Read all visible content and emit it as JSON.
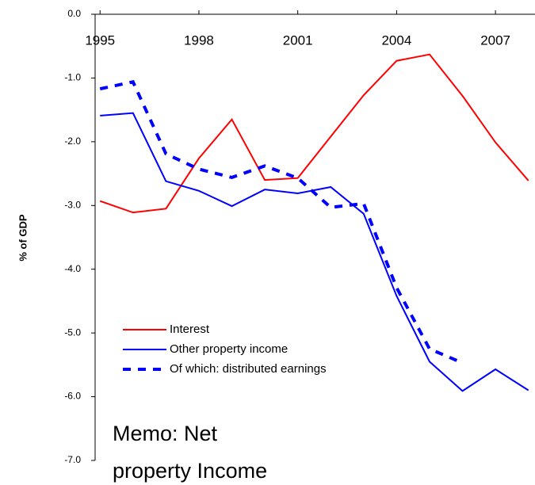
{
  "chart_data": {
    "type": "line",
    "ylabel": "% of GDP",
    "x": [
      1995,
      1996,
      1997,
      1998,
      1999,
      2000,
      2001,
      2002,
      2003,
      2004,
      2005,
      2006,
      2007,
      2008
    ],
    "series": [
      {
        "name": "Interest",
        "color": "#ff0000",
        "dashed": false,
        "values": [
          -2.93,
          -3.11,
          -3.05,
          -2.26,
          -1.65,
          -2.6,
          -2.57,
          -1.92,
          -1.27,
          -0.73,
          -0.63,
          -1.28,
          -2.01,
          -2.61
        ]
      },
      {
        "name": "Other property income",
        "color": "#0000ff",
        "dashed": false,
        "values": [
          -1.59,
          -1.55,
          -2.62,
          -2.77,
          -3.01,
          -2.75,
          -2.81,
          -2.71,
          -3.13,
          -4.42,
          -5.45,
          -5.91,
          -5.57,
          -5.9
        ]
      },
      {
        "name": "Of which: distributed earnings",
        "color": "#0000ff",
        "dashed": true,
        "values": [
          -1.17,
          -1.06,
          -2.19,
          -2.43,
          -2.56,
          -2.38,
          -2.57,
          -3.03,
          -2.97,
          -4.29,
          -5.25,
          -5.47,
          null,
          null
        ]
      }
    ],
    "xlim": [
      1994.85,
      2008.2
    ],
    "xticks": [
      1995,
      1998,
      2001,
      2004,
      2007
    ],
    "ylim": [
      -7,
      0
    ],
    "yticks": [
      {
        "value": 0,
        "label": "0.0"
      },
      {
        "value": -1,
        "label": "-1.0"
      },
      {
        "value": -2,
        "label": "-2.0"
      },
      {
        "value": -3,
        "label": "-3.0"
      },
      {
        "value": -4,
        "label": "-4.0"
      },
      {
        "value": -5,
        "label": "-5.0"
      },
      {
        "value": -6,
        "label": "-6.0"
      },
      {
        "value": -7,
        "label": "-7.0"
      }
    ],
    "annotation": [
      "Memo: Net",
      "property Income"
    ]
  }
}
